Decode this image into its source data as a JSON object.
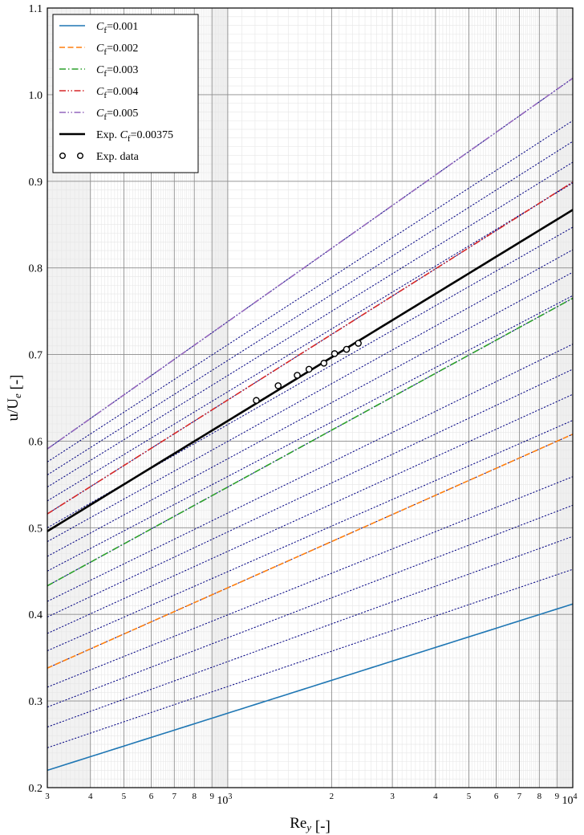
{
  "chart_data": {
    "type": "line",
    "xscale": "log",
    "xlim": [
      300,
      10000
    ],
    "ylim": [
      0.2,
      1.1
    ],
    "grid": true,
    "legend_position": "top-left",
    "xlabel": "Re_y [-]",
    "ylabel": "u/U_e [-]",
    "x_tick_labels": [
      "3",
      "4",
      "5",
      "6",
      "7",
      "8",
      "9",
      "10^3",
      "2",
      "3",
      "4",
      "5",
      "6",
      "7",
      "8",
      "9",
      "10^4"
    ],
    "y_tick_labels": [
      "0.2",
      "0.3",
      "0.4",
      "0.5",
      "0.6",
      "0.7",
      "0.8",
      "0.9",
      "1.0",
      "1.1"
    ],
    "series": [
      {
        "name": "C_f = 0.001",
        "color": "#1f77b4",
        "style": "solid",
        "x": [
          300,
          10000
        ],
        "y": [
          0.22,
          0.412
        ]
      },
      {
        "name": "C_f = 0.002",
        "color": "#ff7f0e",
        "style": "dashed",
        "x": [
          300,
          10000
        ],
        "y": [
          0.338,
          0.608
        ]
      },
      {
        "name": "C_f = 0.003",
        "color": "#2ca02c",
        "style": "dashdot",
        "x": [
          300,
          10000
        ],
        "y": [
          0.433,
          0.765
        ]
      },
      {
        "name": "C_f = 0.004",
        "color": "#d62728",
        "style": "dashdotdot",
        "x": [
          300,
          10000
        ],
        "y": [
          0.516,
          0.899
        ]
      },
      {
        "name": "C_f = 0.005",
        "color": "#9467bd",
        "style": "dashdotdot",
        "x": [
          300,
          10000
        ],
        "y": [
          0.591,
          1.019
        ]
      },
      {
        "name": "Exp. C_f = 0.00375",
        "color": "#000000",
        "style": "solid-thick",
        "x": [
          300,
          10000
        ],
        "y": [
          0.496,
          0.867
        ]
      }
    ],
    "grid_curves": {
      "color": "#000080",
      "style": "dotted",
      "lines": [
        {
          "x": [
            300,
            10000
          ],
          "y": [
            0.22,
            0.412
          ]
        },
        {
          "x": [
            300,
            10000
          ],
          "y": [
            0.246,
            0.452
          ]
        },
        {
          "x": [
            300,
            10000
          ],
          "y": [
            0.27,
            0.49
          ]
        },
        {
          "x": [
            300,
            10000
          ],
          "y": [
            0.293,
            0.526
          ]
        },
        {
          "x": [
            300,
            10000
          ],
          "y": [
            0.316,
            0.559
          ]
        },
        {
          "x": [
            300,
            10000
          ],
          "y": [
            0.338,
            0.608
          ]
        },
        {
          "x": [
            300,
            10000
          ],
          "y": [
            0.358,
            0.624
          ]
        },
        {
          "x": [
            300,
            10000
          ],
          "y": [
            0.378,
            0.654
          ]
        },
        {
          "x": [
            300,
            10000
          ],
          "y": [
            0.397,
            0.683
          ]
        },
        {
          "x": [
            300,
            10000
          ],
          "y": [
            0.415,
            0.712
          ]
        },
        {
          "x": [
            300,
            10000
          ],
          "y": [
            0.433,
            0.765
          ]
        },
        {
          "x": [
            300,
            10000
          ],
          "y": [
            0.45,
            0.768
          ]
        },
        {
          "x": [
            300,
            10000
          ],
          "y": [
            0.467,
            0.795
          ]
        },
        {
          "x": [
            300,
            10000
          ],
          "y": [
            0.484,
            0.821
          ]
        },
        {
          "x": [
            300,
            10000
          ],
          "y": [
            0.5,
            0.847
          ]
        },
        {
          "x": [
            300,
            10000
          ],
          "y": [
            0.516,
            0.899
          ]
        },
        {
          "x": [
            300,
            10000
          ],
          "y": [
            0.531,
            0.898
          ]
        },
        {
          "x": [
            300,
            10000
          ],
          "y": [
            0.547,
            0.922
          ]
        },
        {
          "x": [
            300,
            10000
          ],
          "y": [
            0.561,
            0.946
          ]
        },
        {
          "x": [
            300,
            10000
          ],
          "y": [
            0.576,
            0.97
          ]
        },
        {
          "x": [
            300,
            10000
          ],
          "y": [
            0.591,
            1.019
          ]
        }
      ]
    },
    "scatter": {
      "name": "Exp. data",
      "x": [
        1210,
        1400,
        1590,
        1720,
        1900,
        2040,
        2210,
        2390
      ],
      "y": [
        0.647,
        0.664,
        0.676,
        0.683,
        0.69,
        0.701,
        0.706,
        0.713
      ]
    }
  }
}
